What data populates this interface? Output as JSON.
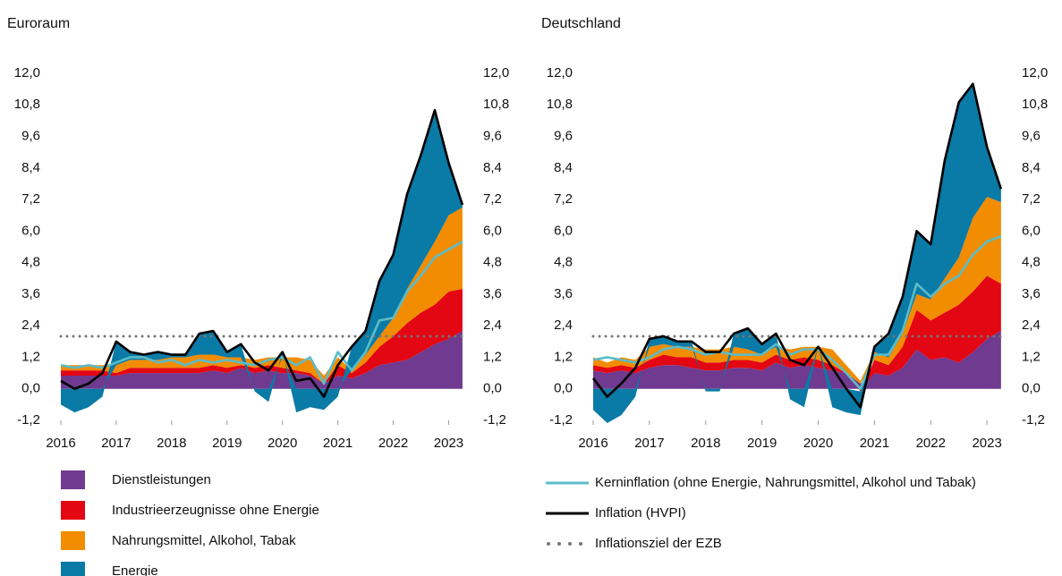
{
  "chart_data": [
    {
      "type": "stacked-area",
      "title": "Euroraum",
      "x": [
        2016,
        2016.25,
        2016.5,
        2016.75,
        2017,
        2017.25,
        2017.5,
        2017.75,
        2018,
        2018.25,
        2018.5,
        2018.75,
        2019,
        2019.25,
        2019.5,
        2019.75,
        2020,
        2020.25,
        2020.5,
        2020.75,
        2021,
        2021.25,
        2021.5,
        2021.75,
        2022,
        2022.25,
        2022.5,
        2022.75,
        2023,
        2023.25
      ],
      "xlim": [
        2016,
        2023.3
      ],
      "xticks": [
        2016,
        2017,
        2018,
        2019,
        2020,
        2021,
        2022,
        2023
      ],
      "ylim": [
        -1.2,
        12
      ],
      "yticks": [
        {
          "value": -1.2,
          "label": "-1,2"
        },
        {
          "value": 0,
          "label": "0,0"
        },
        {
          "value": 1.2,
          "label": "1,2"
        },
        {
          "value": 2.4,
          "label": "2,4"
        },
        {
          "value": 3.6,
          "label": "3,6"
        },
        {
          "value": 4.8,
          "label": "4,8"
        },
        {
          "value": 6,
          "label": "6,0"
        },
        {
          "value": 7.2,
          "label": "7,2"
        },
        {
          "value": 8.4,
          "label": "8,4"
        },
        {
          "value": 9.6,
          "label": "9,6"
        },
        {
          "value": 10.8,
          "label": "10,8"
        },
        {
          "value": 12,
          "label": "12,0"
        }
      ],
      "y2lim": [
        -1.2,
        12
      ],
      "y2ticks": [
        {
          "value": -1.2,
          "label": "-1,2"
        },
        {
          "value": 0,
          "label": "0,0"
        },
        {
          "value": 1.2,
          "label": "1,2"
        },
        {
          "value": 2.4,
          "label": "2,4"
        },
        {
          "value": 3.6,
          "label": "3,6"
        },
        {
          "value": 4.8,
          "label": "4,8"
        },
        {
          "value": 6,
          "label": "6,0"
        },
        {
          "value": 7.2,
          "label": "7,2"
        },
        {
          "value": 8.4,
          "label": "8,4"
        },
        {
          "value": 9.6,
          "label": "9,6"
        },
        {
          "value": 10.8,
          "label": "10,8"
        },
        {
          "value": 12,
          "label": "12,0"
        }
      ],
      "series": [
        {
          "name": "Dienstleistungen",
          "kind": "area",
          "color": "#6f3a8f",
          "values": [
            0.5,
            0.5,
            0.5,
            0.5,
            0.5,
            0.6,
            0.6,
            0.6,
            0.6,
            0.6,
            0.6,
            0.7,
            0.6,
            0.8,
            0.6,
            0.7,
            0.6,
            0.6,
            0.5,
            0.2,
            0.5,
            0.4,
            0.6,
            0.9,
            1.0,
            1.1,
            1.4,
            1.7,
            1.9,
            2.2
          ]
        },
        {
          "name": "Industrieerzeugnisse ohne Energie",
          "kind": "area",
          "color": "#e30613",
          "values": [
            0.2,
            0.2,
            0.2,
            0.2,
            0.1,
            0.2,
            0.2,
            0.2,
            0.2,
            0.2,
            0.2,
            0.2,
            0.2,
            0.1,
            0.2,
            0.2,
            0.2,
            0.1,
            0.1,
            0.0,
            0.4,
            0.2,
            0.4,
            0.7,
            1.0,
            1.4,
            1.5,
            1.5,
            1.8,
            1.6
          ]
        },
        {
          "name": "Nahrungsmittel, Alkohol, Tabak",
          "kind": "area",
          "color": "#f28c00",
          "values": [
            0.2,
            0.2,
            0.2,
            0.2,
            0.3,
            0.3,
            0.3,
            0.3,
            0.4,
            0.4,
            0.5,
            0.4,
            0.4,
            0.3,
            0.3,
            0.3,
            0.4,
            0.5,
            0.5,
            0.3,
            0.3,
            0.1,
            0.3,
            0.4,
            0.7,
            1.3,
            1.8,
            2.4,
            2.9,
            3.1
          ]
        },
        {
          "name": "Energie",
          "kind": "area",
          "color": "#0a7aa6",
          "values": [
            -0.6,
            -0.9,
            -0.7,
            -0.3,
            0.9,
            0.3,
            0.2,
            0.3,
            0.1,
            0.1,
            0.8,
            0.9,
            0.2,
            0.5,
            -0.1,
            -0.5,
            0.2,
            -0.9,
            -0.7,
            -0.8,
            -0.3,
            0.9,
            0.9,
            2.1,
            2.4,
            3.6,
            4.2,
            5.0,
            2.0,
            0.1
          ]
        },
        {
          "kind": "line",
          "color": "#5bbcc8",
          "values": [
            0.9,
            0.8,
            0.9,
            0.8,
            1.0,
            1.2,
            1.2,
            1.0,
            1.1,
            0.9,
            1.1,
            1.0,
            1.1,
            1.0,
            0.9,
            1.1,
            1.2,
            0.9,
            1.2,
            0.2,
            1.4,
            0.7,
            1.4,
            2.6,
            2.7,
            3.7,
            4.3,
            5.0,
            5.3,
            5.6
          ]
        },
        {
          "kind": "line",
          "color": "#000000",
          "values": [
            0.3,
            0.0,
            0.2,
            0.6,
            1.8,
            1.4,
            1.3,
            1.4,
            1.3,
            1.3,
            2.1,
            2.2,
            1.4,
            1.7,
            1.0,
            0.7,
            1.4,
            0.3,
            0.4,
            -0.3,
            0.9,
            1.6,
            2.2,
            4.1,
            5.1,
            7.4,
            8.9,
            10.6,
            8.6,
            7.0
          ]
        }
      ],
      "target": {
        "value": 2,
        "color": "#777777"
      }
    },
    {
      "type": "stacked-area",
      "title": "Deutschland",
      "x": [
        2016,
        2016.25,
        2016.5,
        2016.75,
        2017,
        2017.25,
        2017.5,
        2017.75,
        2018,
        2018.25,
        2018.5,
        2018.75,
        2019,
        2019.25,
        2019.5,
        2019.75,
        2020,
        2020.25,
        2020.5,
        2020.75,
        2021,
        2021.25,
        2021.5,
        2021.75,
        2022,
        2022.25,
        2022.5,
        2022.75,
        2023,
        2023.25
      ],
      "xlim": [
        2016,
        2023.3
      ],
      "xticks": [
        2016,
        2017,
        2018,
        2019,
        2020,
        2021,
        2022,
        2023
      ],
      "ylim": [
        -1.2,
        12
      ],
      "yticks": [
        {
          "value": -1.2,
          "label": "-1,2"
        },
        {
          "value": 0,
          "label": "0,0"
        },
        {
          "value": 1.2,
          "label": "1,2"
        },
        {
          "value": 2.4,
          "label": "2,4"
        },
        {
          "value": 3.6,
          "label": "3,6"
        },
        {
          "value": 4.8,
          "label": "4,8"
        },
        {
          "value": 6,
          "label": "6,0"
        },
        {
          "value": 7.2,
          "label": "7,2"
        },
        {
          "value": 8.4,
          "label": "8,4"
        },
        {
          "value": 9.6,
          "label": "9,6"
        },
        {
          "value": 10.8,
          "label": "10,8"
        },
        {
          "value": 12,
          "label": "12,0"
        }
      ],
      "y2lim": [
        -1.2,
        12
      ],
      "y2ticks": [
        {
          "value": -1.2,
          "label": "-1,2"
        },
        {
          "value": 0,
          "label": "0,0"
        },
        {
          "value": 1.2,
          "label": "1,2"
        },
        {
          "value": 2.4,
          "label": "2,4"
        },
        {
          "value": 3.6,
          "label": "3,6"
        },
        {
          "value": 4.8,
          "label": "4,8"
        },
        {
          "value": 6,
          "label": "6,0"
        },
        {
          "value": 7.2,
          "label": "7,2"
        },
        {
          "value": 8.4,
          "label": "8,4"
        },
        {
          "value": 9.6,
          "label": "9,6"
        },
        {
          "value": 10.8,
          "label": "10,8"
        },
        {
          "value": 12,
          "label": "12,0"
        }
      ],
      "series": [
        {
          "kind": "area",
          "color": "#6f3a8f",
          "values": [
            0.7,
            0.6,
            0.7,
            0.6,
            0.8,
            0.9,
            0.9,
            0.8,
            0.7,
            0.7,
            0.8,
            0.8,
            0.7,
            1.0,
            0.8,
            0.9,
            0.8,
            0.7,
            0.6,
            0.2,
            0.6,
            0.5,
            0.8,
            1.5,
            1.1,
            1.2,
            1.0,
            1.4,
            1.9,
            2.2
          ]
        },
        {
          "kind": "area",
          "color": "#e30613",
          "values": [
            0.2,
            0.2,
            0.2,
            0.2,
            0.3,
            0.4,
            0.3,
            0.4,
            0.3,
            0.3,
            0.3,
            0.3,
            0.3,
            0.3,
            0.3,
            0.3,
            0.3,
            0.2,
            0.0,
            -0.1,
            0.5,
            0.4,
            0.8,
            1.5,
            1.5,
            1.7,
            2.2,
            2.3,
            2.4,
            1.8
          ]
        },
        {
          "kind": "area",
          "color": "#f28c00",
          "values": [
            0.3,
            0.2,
            0.3,
            0.3,
            0.5,
            0.4,
            0.4,
            0.4,
            0.5,
            0.5,
            0.5,
            0.4,
            0.3,
            0.3,
            0.4,
            0.4,
            0.5,
            0.6,
            0.3,
            0.1,
            0.3,
            0.3,
            0.5,
            0.6,
            0.8,
            1.3,
            1.8,
            2.8,
            3.0,
            3.1
          ]
        },
        {
          "kind": "area",
          "color": "#0a7aa6",
          "values": [
            -0.8,
            -1.3,
            -1.0,
            -0.3,
            0.3,
            0.3,
            0.2,
            0.2,
            -0.1,
            -0.1,
            0.5,
            0.8,
            0.4,
            0.5,
            -0.4,
            -0.7,
            0.0,
            -0.7,
            -0.9,
            -0.9,
            0.2,
            0.9,
            1.4,
            2.4,
            2.1,
            4.5,
            5.9,
            5.1,
            1.9,
            0.5
          ]
        },
        {
          "name": "Kerninflation (ohne Energie, Nahrungsmittel, Alkohol und Tabak)",
          "kind": "line",
          "color": "#5bbcc8",
          "values": [
            1.1,
            1.2,
            1.1,
            1.0,
            1.2,
            1.5,
            1.6,
            1.5,
            1.3,
            1.4,
            1.3,
            1.3,
            1.3,
            1.7,
            1.3,
            1.5,
            1.5,
            1.1,
            0.6,
            0.0,
            1.3,
            1.3,
            2.2,
            4.0,
            3.5,
            4.0,
            4.3,
            5.1,
            5.6,
            5.8
          ]
        },
        {
          "name": "Inflation (HVPI)",
          "kind": "line",
          "color": "#000000",
          "values": [
            0.4,
            -0.3,
            0.2,
            0.8,
            1.9,
            2.0,
            1.8,
            1.8,
            1.4,
            1.4,
            2.1,
            2.3,
            1.7,
            2.1,
            1.1,
            0.9,
            1.6,
            0.8,
            0.0,
            -0.7,
            1.6,
            2.1,
            3.5,
            6.0,
            5.5,
            8.7,
            10.9,
            11.6,
            9.2,
            7.6
          ]
        }
      ],
      "target": {
        "value": 2,
        "color": "#777777",
        "name": "Inflationsziel der EZB"
      }
    }
  ]
}
